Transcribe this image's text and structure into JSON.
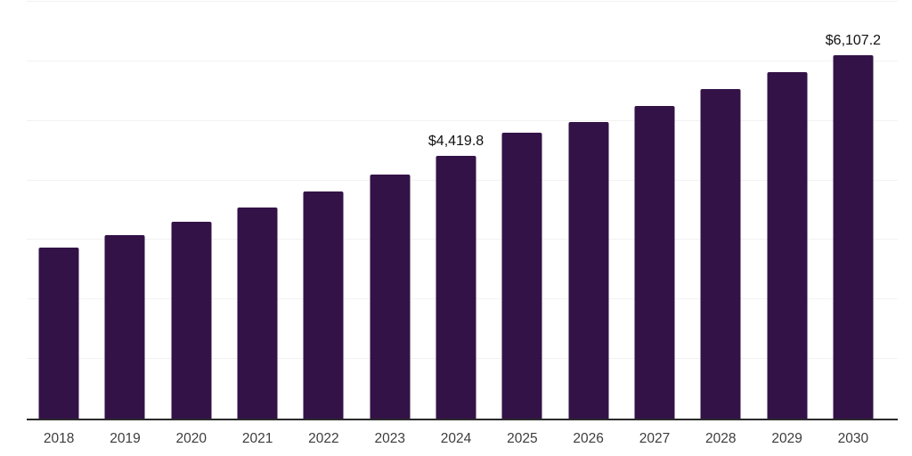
{
  "chart_data": {
    "type": "bar",
    "title": "",
    "xlabel": "",
    "ylabel": "",
    "categories": [
      "2018",
      "2019",
      "2020",
      "2021",
      "2022",
      "2023",
      "2024",
      "2025",
      "2026",
      "2027",
      "2028",
      "2029",
      "2030"
    ],
    "values": [
      2865,
      3075,
      3300,
      3550,
      3815,
      4100,
      4419.8,
      4800,
      4975,
      5245,
      5535,
      5815,
      6107.2
    ],
    "point_labels": [
      "",
      "",
      "",
      "",
      "",
      "",
      "$4,419.8",
      "",
      "",
      "",
      "",
      "",
      "$6,107.2"
    ],
    "ylim": [
      0,
      7000
    ],
    "gridline_step": 1000,
    "grid": "horizontal",
    "legend": "none",
    "colors": {
      "bar": "#331247",
      "gridline": "#f2f2f2",
      "axis_line": "#2b2b2b",
      "tick_label": "#3d3d3d",
      "data_label": "#111111",
      "background": "#ffffff"
    }
  }
}
